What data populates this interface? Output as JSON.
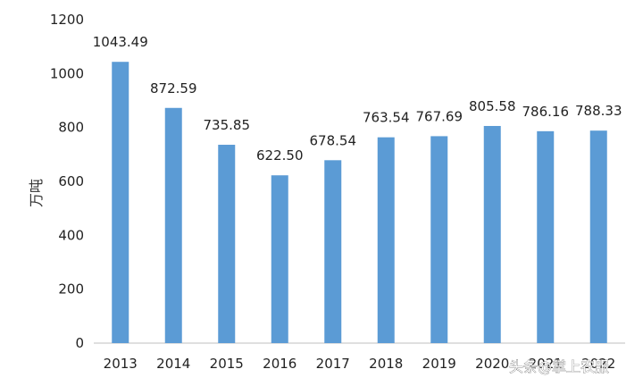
{
  "chart_data": {
    "type": "bar",
    "categories": [
      "2013",
      "2014",
      "2015",
      "2016",
      "2017",
      "2018",
      "2019",
      "2020",
      "2021",
      "2022"
    ],
    "values": [
      1043.49,
      872.59,
      735.85,
      622.5,
      678.54,
      763.54,
      767.69,
      805.58,
      786.16,
      788.33
    ],
    "value_labels": [
      "1043.49",
      "872.59",
      "735.85",
      "622.50",
      "678.54",
      "763.54",
      "767.69",
      "805.58",
      "786.16",
      "788.33"
    ],
    "ylabel": "万吨",
    "ylim": [
      0,
      1200
    ],
    "yticks": [
      "0",
      "200",
      "400",
      "600",
      "800",
      "1000",
      "1200"
    ],
    "grid": false,
    "legend": "none",
    "bar_color": "#5b9bd5"
  },
  "watermark": "头条@掌上农服"
}
